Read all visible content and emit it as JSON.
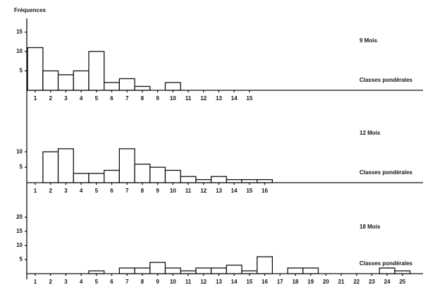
{
  "chart_data": [
    {
      "type": "bar",
      "title": "9 Mois",
      "ylabel": "Fréquences",
      "xlabel": "Classes pondérales",
      "color": "#ffffff",
      "categories": [
        "1",
        "2",
        "3",
        "4",
        "5",
        "6",
        "7",
        "8",
        "9",
        "10",
        "11",
        "12",
        "13",
        "14",
        "15"
      ],
      "values": [
        11,
        5,
        4,
        5,
        10,
        2,
        3,
        1,
        0,
        2,
        0,
        0,
        0,
        0,
        0
      ],
      "ylim": [
        0,
        16
      ],
      "yticks": [
        5,
        10,
        15
      ]
    },
    {
      "type": "bar",
      "title": "12 Mois",
      "xlabel": "Classes pondérales",
      "color": "#ffffff",
      "categories": [
        "1",
        "2",
        "3",
        "4",
        "5",
        "6",
        "7",
        "8",
        "9",
        "10",
        "11",
        "12",
        "13",
        "14",
        "15",
        "16"
      ],
      "values": [
        0,
        10,
        11,
        3,
        3,
        4,
        11,
        6,
        5,
        4,
        2,
        1,
        2,
        1,
        1,
        1
      ],
      "ylim": [
        0,
        16
      ],
      "yticks": [
        5,
        10
      ]
    },
    {
      "type": "bar",
      "title": "18 Mois",
      "xlabel": "Classes pondérales",
      "color": "#ffffff",
      "categories": [
        "1",
        "2",
        "3",
        "4",
        "5",
        "6",
        "7",
        "8",
        "9",
        "10",
        "11",
        "12",
        "13",
        "14",
        "15",
        "16",
        "17",
        "18",
        "19",
        "20",
        "21",
        "22",
        "23",
        "24",
        "25"
      ],
      "values": [
        0,
        0,
        0,
        0,
        1,
        0,
        2,
        2,
        4,
        2,
        1,
        2,
        2,
        3,
        1,
        6,
        0,
        2,
        2,
        0,
        0,
        0,
        0,
        2,
        1
      ],
      "ylim": [
        0,
        22
      ],
      "yticks": [
        5,
        10,
        15,
        20
      ]
    }
  ]
}
